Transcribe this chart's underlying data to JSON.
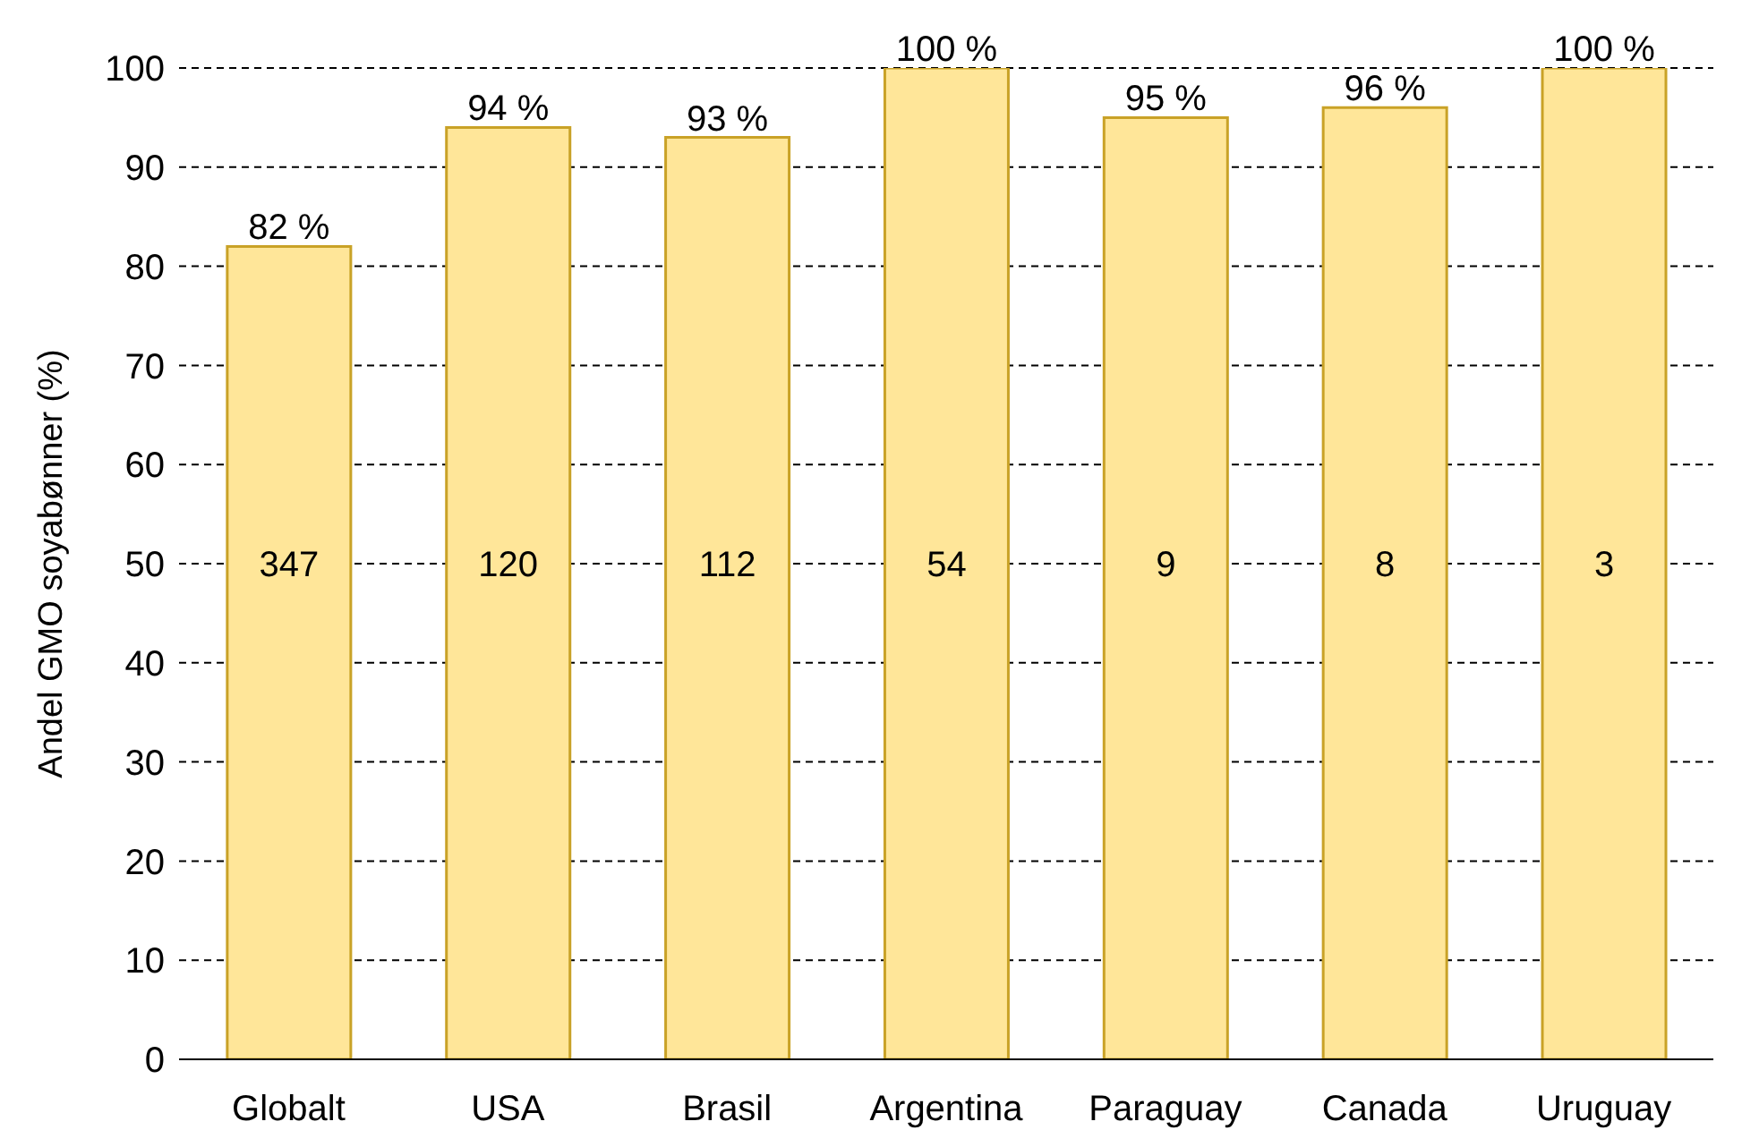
{
  "chart_data": {
    "type": "bar",
    "ylabel": "Andel GMO soyabønner (%)",
    "categories": [
      "Globalt",
      "USA",
      "Brasil",
      "Argentina",
      "Paraguay",
      "Canada",
      "Uruguay"
    ],
    "values": [
      82,
      94,
      93,
      100,
      95,
      96,
      100
    ],
    "value_labels": [
      "82 %",
      "94 %",
      "93 %",
      "100 %",
      "95 %",
      "96 %",
      "100 %"
    ],
    "color": "#ffe699",
    "ylim": [
      0,
      100
    ],
    "yticks": [
      0,
      10,
      20,
      30,
      40,
      50,
      60,
      70,
      80,
      90,
      100
    ],
    "grid": "y",
    "annotations": [
      "347",
      "120",
      "112",
      "54",
      "9",
      "8",
      "3"
    ]
  }
}
